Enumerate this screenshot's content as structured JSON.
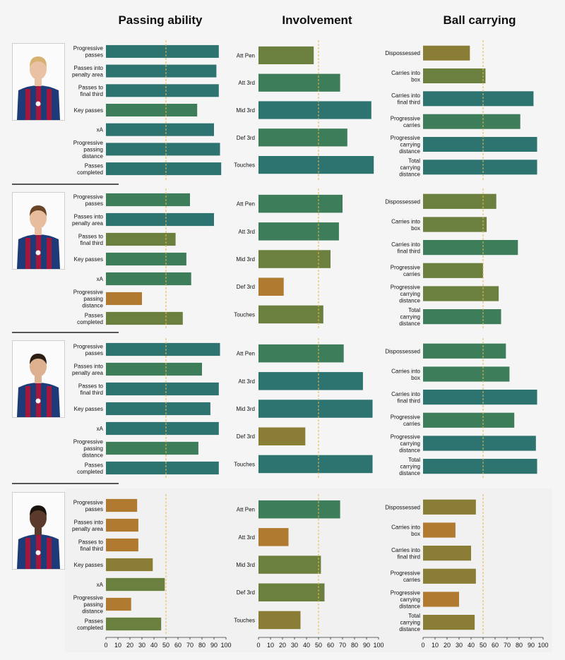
{
  "titles": [
    "Passing ability",
    "Involvement",
    "Ball carrying"
  ],
  "colors": {
    "background": "#f5f5f5",
    "text": "#111111",
    "divider": "#222222",
    "median_line": "#e8b84a",
    "high": "#2d7470",
    "mid_high": "#3d7d5a",
    "mid": "#6b7f3f",
    "mid_low": "#8a7d35",
    "low": "#b07a30"
  },
  "chart_data": [
    {
      "type": "bar",
      "orientation": "horizontal",
      "panel": "Passing ability",
      "player": 1,
      "categories": [
        "Progressive passes",
        "Passes into penalty area",
        "Passes to final third",
        "Key passes",
        "xA",
        "Progressive passing distance",
        "Passes completed"
      ],
      "values": [
        94,
        92,
        94,
        76,
        90,
        95,
        96
      ],
      "reference_line": 50,
      "xlim": [
        0,
        100
      ]
    },
    {
      "type": "bar",
      "orientation": "horizontal",
      "panel": "Involvement",
      "player": 1,
      "categories": [
        "Att Pen",
        "Att 3rd",
        "Mid 3rd",
        "Def 3rd",
        "Touches"
      ],
      "values": [
        46,
        68,
        94,
        74,
        96
      ],
      "reference_line": 50,
      "xlim": [
        0,
        100
      ]
    },
    {
      "type": "bar",
      "orientation": "horizontal",
      "panel": "Ball carrying",
      "player": 1,
      "categories": [
        "Dispossessed",
        "Carries into box",
        "Carries into final third",
        "Progressive carries",
        "Progressive carrying distance",
        "Total carrying distance"
      ],
      "values": [
        39,
        52,
        92,
        81,
        95,
        95
      ],
      "reference_line": 50,
      "xlim": [
        0,
        100
      ]
    },
    {
      "type": "bar",
      "orientation": "horizontal",
      "panel": "Passing ability",
      "player": 2,
      "categories": [
        "Progressive passes",
        "Passes into penalty area",
        "Passes to final third",
        "Key passes",
        "xA",
        "Progressive passing distance",
        "Passes completed"
      ],
      "values": [
        70,
        90,
        58,
        67,
        71,
        30,
        64
      ],
      "reference_line": 50,
      "xlim": [
        0,
        100
      ]
    },
    {
      "type": "bar",
      "orientation": "horizontal",
      "panel": "Involvement",
      "player": 2,
      "categories": [
        "Att Pen",
        "Att 3rd",
        "Mid 3rd",
        "Def 3rd",
        "Touches"
      ],
      "values": [
        70,
        67,
        60,
        21,
        54
      ],
      "reference_line": 50,
      "xlim": [
        0,
        100
      ]
    },
    {
      "type": "bar",
      "orientation": "horizontal",
      "panel": "Ball carrying",
      "player": 2,
      "categories": [
        "Dispossessed",
        "Carries into box",
        "Carries into final third",
        "Progressive carries",
        "Progressive carrying distance",
        "Total carrying distance"
      ],
      "values": [
        61,
        53,
        79,
        50,
        63,
        65
      ],
      "reference_line": 50,
      "xlim": [
        0,
        100
      ]
    },
    {
      "type": "bar",
      "orientation": "horizontal",
      "panel": "Passing ability",
      "player": 3,
      "categories": [
        "Progressive passes",
        "Passes into penalty area",
        "Passes to final third",
        "Key passes",
        "xA",
        "Progressive passing distance",
        "Passes completed"
      ],
      "values": [
        95,
        80,
        94,
        87,
        94,
        77,
        94
      ],
      "reference_line": 50,
      "xlim": [
        0,
        100
      ]
    },
    {
      "type": "bar",
      "orientation": "horizontal",
      "panel": "Involvement",
      "player": 3,
      "categories": [
        "Att Pen",
        "Att 3rd",
        "Mid 3rd",
        "Def 3rd",
        "Touches"
      ],
      "values": [
        71,
        87,
        95,
        39,
        95
      ],
      "reference_line": 50,
      "xlim": [
        0,
        100
      ]
    },
    {
      "type": "bar",
      "orientation": "horizontal",
      "panel": "Ball carrying",
      "player": 3,
      "categories": [
        "Dispossessed",
        "Carries into box",
        "Carries into final third",
        "Progressive carries",
        "Progressive carrying distance",
        "Total carrying distance"
      ],
      "values": [
        69,
        72,
        95,
        76,
        94,
        95
      ],
      "reference_line": 50,
      "xlim": [
        0,
        100
      ]
    },
    {
      "type": "bar",
      "orientation": "horizontal",
      "panel": "Passing ability",
      "player": 4,
      "categories": [
        "Progressive passes",
        "Passes into penalty area",
        "Passes to final third",
        "Key passes",
        "xA",
        "Progressive passing distance",
        "Passes completed"
      ],
      "values": [
        26,
        27,
        27,
        39,
        49,
        21,
        46
      ],
      "reference_line": 50,
      "xlim": [
        0,
        100
      ]
    },
    {
      "type": "bar",
      "orientation": "horizontal",
      "panel": "Involvement",
      "player": 4,
      "categories": [
        "Att Pen",
        "Att 3rd",
        "Mid 3rd",
        "Def 3rd",
        "Touches"
      ],
      "values": [
        68,
        25,
        52,
        55,
        35
      ],
      "reference_line": 50,
      "xlim": [
        0,
        100
      ]
    },
    {
      "type": "bar",
      "orientation": "horizontal",
      "panel": "Ball carrying",
      "player": 4,
      "categories": [
        "Dispossessed",
        "Carries into box",
        "Carries into final third",
        "Progressive carries",
        "Progressive carrying distance",
        "Total carrying distance"
      ],
      "values": [
        44,
        27,
        40,
        44,
        30,
        43
      ],
      "reference_line": 50,
      "xlim": [
        0,
        100
      ]
    }
  ],
  "x_ticks": [
    0,
    10,
    20,
    30,
    40,
    50,
    60,
    70,
    80,
    90,
    100
  ],
  "players": [
    {
      "photo": "player-photo-1",
      "skin": "#e9c2a6",
      "hair": "#d8b070"
    },
    {
      "photo": "player-photo-2",
      "skin": "#e7bd9e",
      "hair": "#6b4528"
    },
    {
      "photo": "player-photo-3",
      "skin": "#ddb08f",
      "hair": "#2b1d14"
    },
    {
      "photo": "player-photo-4",
      "skin": "#5a3a2a",
      "hair": "#1a120d"
    }
  ]
}
